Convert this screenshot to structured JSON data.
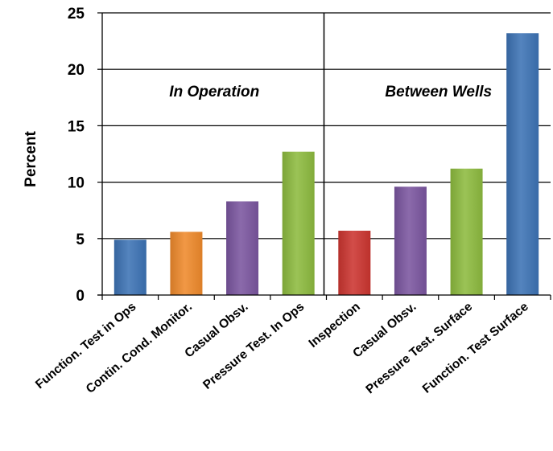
{
  "chart_data": {
    "type": "bar",
    "ylabel": "Percent",
    "xlabel": "",
    "ylim": [
      0,
      25
    ],
    "yticks": [
      0,
      5,
      10,
      15,
      20,
      25
    ],
    "grid": true,
    "legend": "none",
    "categories": [
      "Function. Test in Ops",
      "Contin. Cond. Monitor.",
      "Casual Obsv.",
      "Pressure Test. In Ops",
      "Inspection",
      "Casual Obsv.",
      "Pressure Test. Surface",
      "Function. Test Surface"
    ],
    "values": [
      4.9,
      5.6,
      8.3,
      12.7,
      5.7,
      9.6,
      11.2,
      23.2
    ],
    "bar_colors": [
      "#3d73b5",
      "#ef8a2c",
      "#7b56a0",
      "#8dbb3f",
      "#cc3530",
      "#7b56a0",
      "#8dbb3f",
      "#3d73b5"
    ],
    "groups": [
      {
        "label": "In Operation",
        "categories": [
          0,
          1,
          2,
          3
        ]
      },
      {
        "label": "Between Wells",
        "categories": [
          4,
          5,
          6,
          7
        ]
      }
    ]
  }
}
